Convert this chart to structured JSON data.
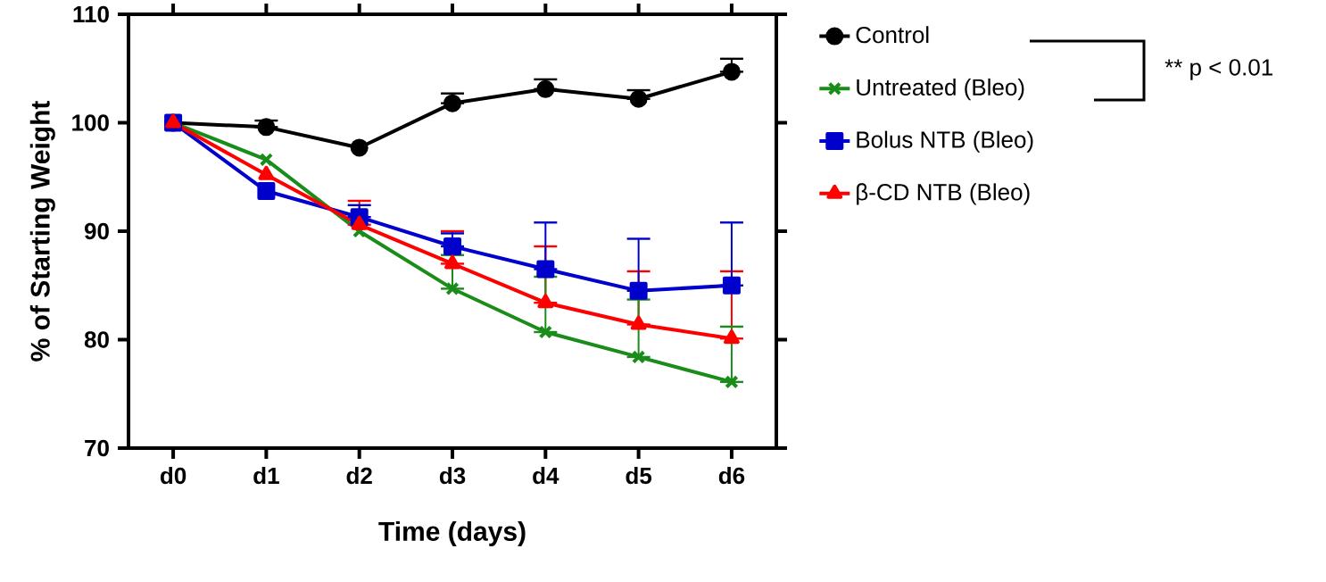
{
  "chart_data": {
    "type": "line",
    "xlabel": "Time (days)",
    "ylabel": "% of Starting Weight",
    "categories": [
      "d0",
      "d1",
      "d2",
      "d3",
      "d4",
      "d5",
      "d6"
    ],
    "ylim": [
      70,
      110
    ],
    "yticks": [
      70,
      80,
      90,
      100,
      110
    ],
    "grid": false,
    "legend": "right",
    "annotations": [
      "** p < 0.01"
    ],
    "series": [
      {
        "name": "Control",
        "color": "#000000",
        "marker": "circle",
        "values": [
          100,
          99.6,
          97.7,
          101.8,
          103.1,
          102.2,
          104.7
        ],
        "errors": [
          null,
          [
            99.6,
            100.2
          ],
          null,
          [
            101.8,
            102.7
          ],
          [
            103.1,
            104.0
          ],
          [
            102.2,
            103.0
          ],
          [
            104.7,
            105.9
          ]
        ]
      },
      {
        "name": "Untreated (Bleo)",
        "color": "#1a8c1a",
        "marker": "cross",
        "values": [
          100,
          96.6,
          90.0,
          84.7,
          80.7,
          78.4,
          76.1
        ],
        "errors": [
          null,
          null,
          null,
          [
            84.7,
            87.8
          ],
          [
            80.7,
            85.8
          ],
          [
            78.4,
            83.7
          ],
          [
            76.1,
            81.2
          ]
        ]
      },
      {
        "name": "Bolus NTB (Bleo)",
        "color": "#0000cc",
        "marker": "square",
        "values": [
          100,
          93.7,
          91.3,
          88.6,
          86.5,
          84.5,
          85.0
        ],
        "errors": [
          null,
          null,
          [
            91.3,
            92.4
          ],
          [
            88.6,
            89.8
          ],
          [
            86.5,
            90.8
          ],
          [
            84.5,
            89.3
          ],
          [
            85.0,
            90.8
          ]
        ]
      },
      {
        "name": "β-CD NTB (Bleo)",
        "color": "#ff0000",
        "marker": "triangle",
        "values": [
          100,
          95.2,
          90.6,
          87.0,
          83.4,
          81.4,
          80.1
        ],
        "errors": [
          null,
          null,
          [
            90.6,
            92.8
          ],
          [
            87.0,
            90.0
          ],
          [
            83.4,
            88.6
          ],
          [
            81.4,
            86.3
          ],
          [
            80.1,
            86.3
          ]
        ]
      }
    ]
  }
}
